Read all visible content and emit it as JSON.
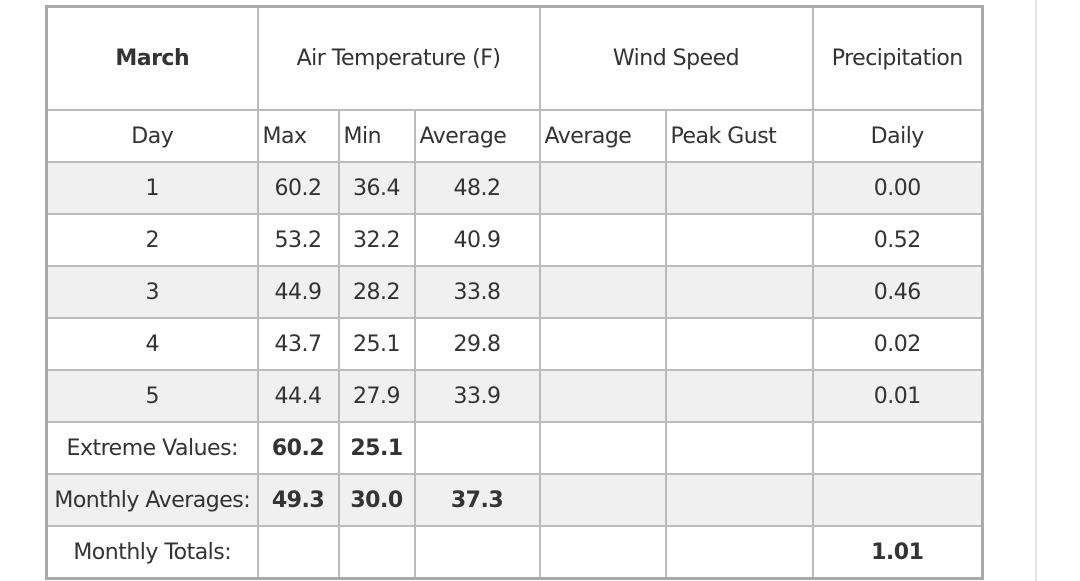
{
  "header": {
    "title": "March",
    "groups": [
      "Air Temperature (F)",
      "Wind Speed",
      "Precipitation"
    ]
  },
  "subheaders": [
    "Day",
    "Max",
    "Min",
    "Average",
    "Average",
    "Peak Gust",
    "Daily"
  ],
  "rows": [
    {
      "day": "1",
      "max": "60.2",
      "min": "36.4",
      "average": "48.2",
      "precipitation": "0.00"
    },
    {
      "day": "2",
      "max": "53.2",
      "min": "32.2",
      "average": "40.9",
      "precipitation": "0.52"
    },
    {
      "day": "3",
      "max": "44.9",
      "min": "28.2",
      "average": "33.8",
      "precipitation": "0.46"
    },
    {
      "day": "4",
      "max": "43.7",
      "min": "25.1",
      "average": "29.8",
      "precipitation": "0.02"
    },
    {
      "day": "5",
      "max": "44.4",
      "min": "27.9",
      "average": "33.9",
      "precipitation": "0.01"
    }
  ],
  "extreme_values": {
    "label": "Extreme Values:",
    "max": "60.2",
    "min": "25.1"
  },
  "monthly_averages": {
    "label": "Monthly Averages:",
    "max": "49.3",
    "min": "30.0",
    "average": "37.3"
  },
  "monthly_totals": {
    "label": "Monthly Totals:",
    "precipitation": "1.01"
  }
}
